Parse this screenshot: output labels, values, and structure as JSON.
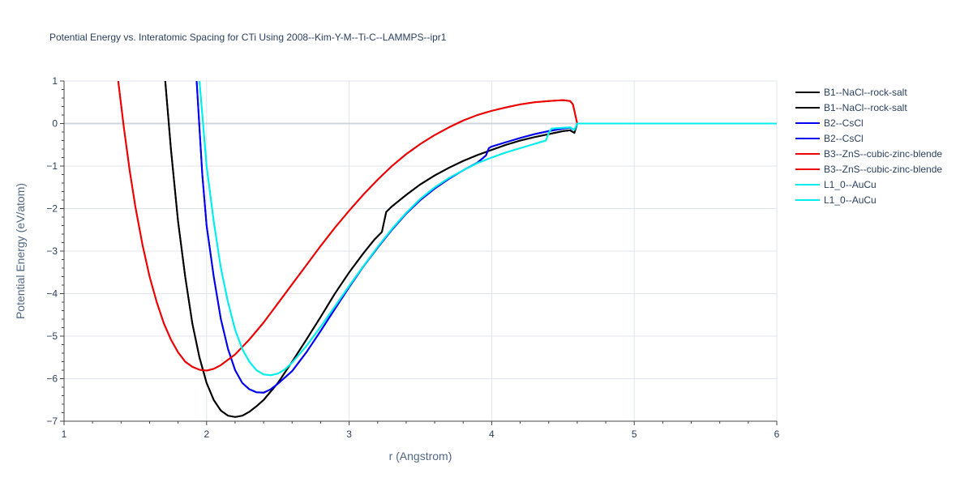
{
  "chart_data": {
    "type": "line",
    "title": "Potential Energy vs. Interatomic Spacing for CTi Using 2008--Kim-Y-M--Ti-C--LAMMPS--ipr1",
    "xlabel": "r (Angstrom)",
    "ylabel": "Potential Energy (eV/atom)",
    "xlim": [
      1,
      6
    ],
    "ylim": [
      -7,
      1
    ],
    "xticks": [
      1,
      2,
      3,
      4,
      5,
      6
    ],
    "xtick_labels": [
      "1",
      "2",
      "3",
      "4",
      "5",
      "6"
    ],
    "yticks": [
      1,
      0,
      -1,
      -2,
      -3,
      -4,
      -5,
      -6,
      -7
    ],
    "ytick_labels": [
      "1",
      "0",
      "−1",
      "−2",
      "−3",
      "−4",
      "−5",
      "−6",
      "−7"
    ],
    "grid": true,
    "legend_position": "top-right",
    "series": [
      {
        "name": "B1--NaCl--rock-salt",
        "color": "#000000",
        "x": [
          1.71,
          1.75,
          1.8,
          1.85,
          1.9,
          1.95,
          2.0,
          2.05,
          2.1,
          2.15,
          2.2,
          2.25,
          2.3,
          2.35,
          2.4,
          2.5,
          2.6,
          2.7,
          2.8,
          2.9,
          3.0,
          3.1,
          3.18,
          3.23,
          3.26,
          3.3,
          3.4,
          3.5,
          3.6,
          3.7,
          3.8,
          3.9,
          4.0,
          4.1,
          4.2,
          4.3,
          4.4,
          4.5,
          4.55,
          4.58,
          4.6,
          4.7,
          5.0,
          5.5,
          6.0
        ],
        "y": [
          1.0,
          -0.6,
          -2.3,
          -3.6,
          -4.7,
          -5.5,
          -6.1,
          -6.5,
          -6.75,
          -6.87,
          -6.9,
          -6.87,
          -6.78,
          -6.65,
          -6.5,
          -6.1,
          -5.6,
          -5.08,
          -4.55,
          -4.0,
          -3.5,
          -3.05,
          -2.72,
          -2.55,
          -2.08,
          -1.95,
          -1.68,
          -1.43,
          -1.22,
          -1.04,
          -0.88,
          -0.74,
          -0.62,
          -0.5,
          -0.4,
          -0.32,
          -0.25,
          -0.18,
          -0.16,
          -0.22,
          0.0,
          0.0,
          0.0,
          0.0,
          0.0
        ]
      },
      {
        "name": "B1--NaCl--rock-salt",
        "color": "#000000",
        "x": [
          1.71,
          1.75,
          1.8,
          1.85,
          1.9,
          1.95,
          2.0,
          2.05,
          2.1,
          2.15,
          2.2,
          2.25,
          2.3,
          2.35,
          2.4,
          2.5,
          2.6,
          2.7,
          2.8,
          2.9,
          3.0,
          3.1,
          3.18,
          3.23,
          3.26,
          3.3,
          3.4,
          3.5,
          3.6,
          3.7,
          3.8,
          3.9,
          4.0,
          4.1,
          4.2,
          4.3,
          4.4,
          4.5,
          4.55,
          4.58,
          4.6,
          4.7,
          5.0,
          5.5,
          6.0
        ],
        "y": [
          1.0,
          -0.6,
          -2.3,
          -3.6,
          -4.7,
          -5.5,
          -6.1,
          -6.5,
          -6.75,
          -6.87,
          -6.9,
          -6.87,
          -6.78,
          -6.65,
          -6.5,
          -6.1,
          -5.6,
          -5.08,
          -4.55,
          -4.0,
          -3.5,
          -3.05,
          -2.72,
          -2.55,
          -2.08,
          -1.95,
          -1.68,
          -1.43,
          -1.22,
          -1.04,
          -0.88,
          -0.74,
          -0.62,
          -0.5,
          -0.4,
          -0.32,
          -0.25,
          -0.18,
          -0.16,
          -0.22,
          0.0,
          0.0,
          0.0,
          0.0,
          0.0
        ]
      },
      {
        "name": "B2--CsCl",
        "color": "#0000ee",
        "x": [
          1.93,
          1.97,
          2.0,
          2.05,
          2.1,
          2.15,
          2.2,
          2.25,
          2.3,
          2.35,
          2.4,
          2.45,
          2.5,
          2.6,
          2.7,
          2.8,
          2.9,
          3.0,
          3.1,
          3.2,
          3.3,
          3.4,
          3.5,
          3.6,
          3.7,
          3.8,
          3.9,
          3.96,
          3.98,
          4.0,
          4.1,
          4.2,
          4.3,
          4.4,
          4.5,
          4.55,
          4.58,
          4.6,
          4.7,
          5.0,
          5.5,
          6.0
        ],
        "y": [
          1.0,
          -1.2,
          -2.4,
          -3.6,
          -4.6,
          -5.3,
          -5.8,
          -6.1,
          -6.25,
          -6.32,
          -6.33,
          -6.25,
          -6.12,
          -5.82,
          -5.38,
          -4.88,
          -4.36,
          -3.85,
          -3.36,
          -2.92,
          -2.5,
          -2.12,
          -1.8,
          -1.53,
          -1.3,
          -1.1,
          -0.92,
          -0.75,
          -0.58,
          -0.54,
          -0.44,
          -0.34,
          -0.25,
          -0.18,
          -0.12,
          -0.1,
          -0.15,
          0.0,
          0.0,
          0.0,
          0.0,
          0.0
        ]
      },
      {
        "name": "B2--CsCl",
        "color": "#0000ee",
        "x": [
          1.93,
          1.97,
          2.0,
          2.05,
          2.1,
          2.15,
          2.2,
          2.25,
          2.3,
          2.35,
          2.4,
          2.45,
          2.5,
          2.6,
          2.7,
          2.8,
          2.9,
          3.0,
          3.1,
          3.2,
          3.3,
          3.4,
          3.5,
          3.6,
          3.7,
          3.8,
          3.9,
          3.96,
          3.98,
          4.0,
          4.1,
          4.2,
          4.3,
          4.4,
          4.5,
          4.55,
          4.58,
          4.6,
          4.7,
          5.0,
          5.5,
          6.0
        ],
        "y": [
          1.0,
          -1.2,
          -2.4,
          -3.6,
          -4.6,
          -5.3,
          -5.8,
          -6.1,
          -6.25,
          -6.32,
          -6.33,
          -6.25,
          -6.12,
          -5.82,
          -5.38,
          -4.88,
          -4.36,
          -3.85,
          -3.36,
          -2.92,
          -2.5,
          -2.12,
          -1.8,
          -1.53,
          -1.3,
          -1.1,
          -0.92,
          -0.75,
          -0.58,
          -0.54,
          -0.44,
          -0.34,
          -0.25,
          -0.18,
          -0.12,
          -0.1,
          -0.15,
          0.0,
          0.0,
          0.0,
          0.0,
          0.0
        ]
      },
      {
        "name": "B3--ZnS--cubic-zinc-blende",
        "color": "#ee0000",
        "x": [
          1.38,
          1.42,
          1.46,
          1.5,
          1.55,
          1.6,
          1.65,
          1.7,
          1.75,
          1.8,
          1.85,
          1.9,
          1.95,
          2.0,
          2.05,
          2.1,
          2.2,
          2.3,
          2.4,
          2.5,
          2.6,
          2.7,
          2.8,
          2.9,
          3.0,
          3.1,
          3.2,
          3.3,
          3.4,
          3.5,
          3.6,
          3.7,
          3.8,
          3.9,
          4.0,
          4.1,
          4.2,
          4.3,
          4.4,
          4.5,
          4.55,
          4.57,
          4.6,
          4.7,
          5.0,
          5.5,
          6.0
        ],
        "y": [
          1.0,
          -0.1,
          -1.1,
          -1.95,
          -2.85,
          -3.6,
          -4.2,
          -4.7,
          -5.08,
          -5.38,
          -5.6,
          -5.72,
          -5.79,
          -5.81,
          -5.77,
          -5.68,
          -5.43,
          -5.08,
          -4.68,
          -4.23,
          -3.78,
          -3.33,
          -2.88,
          -2.45,
          -2.05,
          -1.67,
          -1.32,
          -1.0,
          -0.72,
          -0.48,
          -0.27,
          -0.09,
          0.07,
          0.2,
          0.3,
          0.38,
          0.45,
          0.5,
          0.53,
          0.55,
          0.53,
          0.45,
          0.0,
          0.0,
          0.0,
          0.0,
          0.0
        ]
      },
      {
        "name": "B3--ZnS--cubic-zinc-blende",
        "color": "#ee0000",
        "x": [
          1.38,
          1.42,
          1.46,
          1.5,
          1.55,
          1.6,
          1.65,
          1.7,
          1.75,
          1.8,
          1.85,
          1.9,
          1.95,
          2.0,
          2.05,
          2.1,
          2.2,
          2.3,
          2.4,
          2.5,
          2.6,
          2.7,
          2.8,
          2.9,
          3.0,
          3.1,
          3.2,
          3.3,
          3.4,
          3.5,
          3.6,
          3.7,
          3.8,
          3.9,
          4.0,
          4.1,
          4.2,
          4.3,
          4.4,
          4.5,
          4.55,
          4.57,
          4.6,
          4.7,
          5.0,
          5.5,
          6.0
        ],
        "y": [
          1.0,
          -0.1,
          -1.1,
          -1.95,
          -2.85,
          -3.6,
          -4.2,
          -4.7,
          -5.08,
          -5.38,
          -5.6,
          -5.72,
          -5.79,
          -5.81,
          -5.77,
          -5.68,
          -5.43,
          -5.08,
          -4.68,
          -4.23,
          -3.78,
          -3.33,
          -2.88,
          -2.45,
          -2.05,
          -1.67,
          -1.32,
          -1.0,
          -0.72,
          -0.48,
          -0.27,
          -0.09,
          0.07,
          0.2,
          0.3,
          0.38,
          0.45,
          0.5,
          0.53,
          0.55,
          0.53,
          0.45,
          0.0,
          0.0,
          0.0,
          0.0,
          0.0
        ]
      },
      {
        "name": "L1_0--AuCu",
        "color": "#00eeee",
        "x": [
          1.95,
          1.98,
          2.0,
          2.05,
          2.1,
          2.15,
          2.2,
          2.25,
          2.3,
          2.35,
          2.4,
          2.45,
          2.5,
          2.55,
          2.6,
          2.7,
          2.8,
          2.9,
          3.0,
          3.1,
          3.2,
          3.3,
          3.4,
          3.5,
          3.6,
          3.7,
          3.8,
          3.9,
          4.0,
          4.1,
          4.2,
          4.3,
          4.38,
          4.4,
          4.42,
          4.5,
          4.55,
          4.58,
          4.6,
          4.7,
          5.0,
          5.5,
          6.0
        ],
        "y": [
          1.0,
          -0.2,
          -1.0,
          -2.3,
          -3.4,
          -4.2,
          -4.85,
          -5.3,
          -5.6,
          -5.8,
          -5.9,
          -5.92,
          -5.88,
          -5.78,
          -5.62,
          -5.23,
          -4.78,
          -4.3,
          -3.82,
          -3.35,
          -2.9,
          -2.48,
          -2.1,
          -1.77,
          -1.5,
          -1.28,
          -1.1,
          -0.93,
          -0.8,
          -0.68,
          -0.58,
          -0.48,
          -0.4,
          -0.22,
          -0.12,
          -0.1,
          -0.09,
          -0.15,
          0.0,
          0.0,
          0.0,
          0.0,
          0.0
        ]
      },
      {
        "name": "L1_0--AuCu",
        "color": "#00eeee",
        "x": [
          1.95,
          1.98,
          2.0,
          2.05,
          2.1,
          2.15,
          2.2,
          2.25,
          2.3,
          2.35,
          2.4,
          2.45,
          2.5,
          2.55,
          2.6,
          2.7,
          2.8,
          2.9,
          3.0,
          3.1,
          3.2,
          3.3,
          3.4,
          3.5,
          3.6,
          3.7,
          3.8,
          3.9,
          4.0,
          4.1,
          4.2,
          4.3,
          4.38,
          4.4,
          4.42,
          4.5,
          4.55,
          4.58,
          4.6,
          4.7,
          5.0,
          5.5,
          6.0
        ],
        "y": [
          1.0,
          -0.2,
          -1.0,
          -2.3,
          -3.4,
          -4.2,
          -4.85,
          -5.3,
          -5.6,
          -5.8,
          -5.9,
          -5.92,
          -5.88,
          -5.78,
          -5.62,
          -5.23,
          -4.78,
          -4.3,
          -3.82,
          -3.35,
          -2.9,
          -2.48,
          -2.1,
          -1.77,
          -1.5,
          -1.28,
          -1.1,
          -0.93,
          -0.8,
          -0.68,
          -0.58,
          -0.48,
          -0.4,
          -0.22,
          -0.12,
          -0.1,
          -0.09,
          -0.15,
          0.0,
          0.0,
          0.0,
          0.0,
          0.0
        ]
      }
    ]
  }
}
